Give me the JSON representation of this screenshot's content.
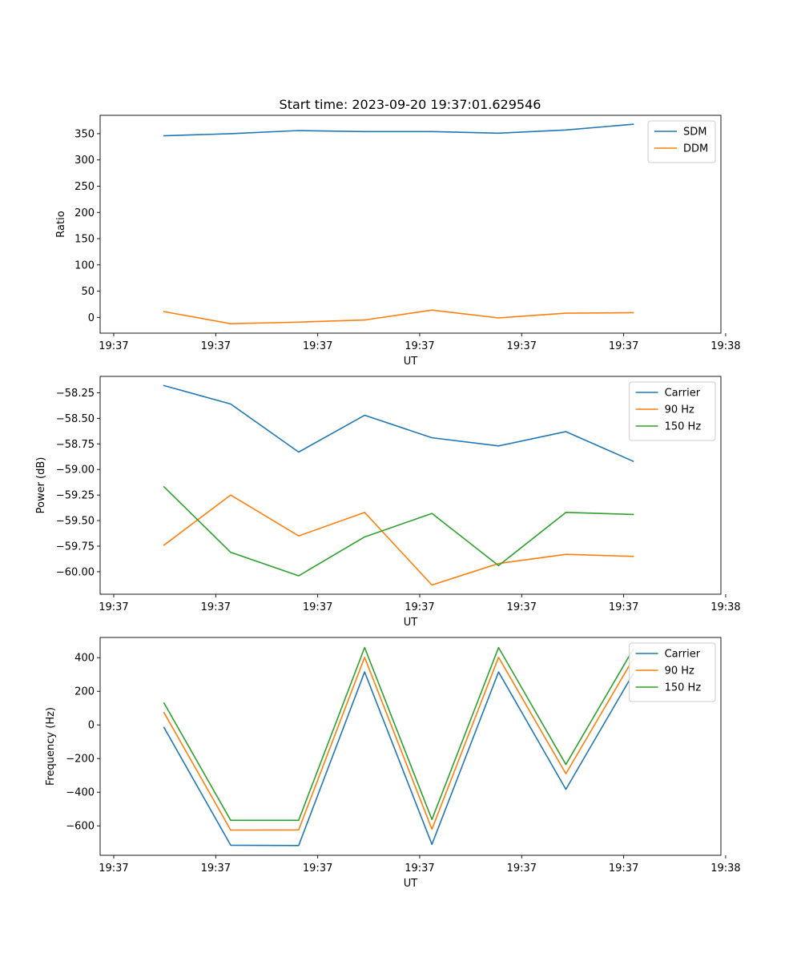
{
  "figure_title": "Start time: 2023-09-20 19:37:01.629546",
  "colors": {
    "c0": "#1f77b4",
    "c1": "#ff7f0e",
    "c2": "#2ca02c"
  },
  "chart_data": [
    {
      "type": "line",
      "id": "ratio",
      "title": "Start time: 2023-09-20 19:37:01.629546",
      "xlabel": "UT",
      "ylabel": "Ratio",
      "xlim": [
        0,
        9.13
      ],
      "ylim": [
        -30,
        385
      ],
      "xticks": [
        0.2,
        1.7,
        3.2,
        4.7,
        6.2,
        7.7,
        9.2
      ],
      "xtick_labels": [
        "19:37",
        "19:37",
        "19:37",
        "19:37",
        "19:37",
        "19:37",
        "19:38"
      ],
      "yticks": [
        0,
        50,
        100,
        150,
        200,
        250,
        300,
        350
      ],
      "ytick_labels": [
        "0",
        "50",
        "100",
        "150",
        "200",
        "250",
        "300",
        "350"
      ],
      "x": [
        0.94,
        1.92,
        2.92,
        3.89,
        4.88,
        5.86,
        6.85,
        7.84
      ],
      "series": [
        {
          "name": "SDM",
          "color": "#1f77b4",
          "values": [
            346,
            350,
            356,
            354,
            354,
            351,
            357,
            368
          ]
        },
        {
          "name": "DDM",
          "color": "#ff7f0e",
          "values": [
            11,
            -12,
            -9,
            -5,
            14,
            -1,
            8,
            9
          ]
        }
      ],
      "legend": "top-right"
    },
    {
      "type": "line",
      "id": "power",
      "title": "",
      "xlabel": "UT",
      "ylabel": "Power (dB)",
      "xlim": [
        0,
        9.13
      ],
      "ylim": [
        -60.22,
        -58.09
      ],
      "xticks": [
        0.2,
        1.7,
        3.2,
        4.7,
        6.2,
        7.7,
        9.2
      ],
      "xtick_labels": [
        "19:37",
        "19:37",
        "19:37",
        "19:37",
        "19:37",
        "19:37",
        "19:38"
      ],
      "yticks": [
        -60.0,
        -59.75,
        -59.5,
        -59.25,
        -59.0,
        -58.75,
        -58.5,
        -58.25
      ],
      "ytick_labels": [
        "−60.00",
        "−59.75",
        "−59.50",
        "−59.25",
        "−59.00",
        "−58.75",
        "−58.50",
        "−58.25"
      ],
      "x": [
        0.94,
        1.92,
        2.92,
        3.89,
        4.88,
        5.86,
        6.85,
        7.84
      ],
      "series": [
        {
          "name": "Carrier",
          "color": "#1f77b4",
          "values": [
            -58.18,
            -58.36,
            -58.83,
            -58.47,
            -58.69,
            -58.77,
            -58.63,
            -58.92
          ]
        },
        {
          "name": "90 Hz",
          "color": "#ff7f0e",
          "values": [
            -59.74,
            -59.25,
            -59.65,
            -59.42,
            -60.13,
            -59.92,
            -59.83,
            -59.85
          ]
        },
        {
          "name": "150 Hz",
          "color": "#2ca02c",
          "values": [
            -59.17,
            -59.81,
            -60.04,
            -59.66,
            -59.43,
            -59.94,
            -59.42,
            -59.44
          ]
        }
      ],
      "legend": "top-right"
    },
    {
      "type": "line",
      "id": "frequency",
      "title": "",
      "xlabel": "UT",
      "ylabel": "Frequency (Hz)",
      "xlim": [
        0,
        9.13
      ],
      "ylim": [
        -775,
        520
      ],
      "xticks": [
        0.2,
        1.7,
        3.2,
        4.7,
        6.2,
        7.7,
        9.2
      ],
      "xtick_labels": [
        "19:37",
        "19:37",
        "19:37",
        "19:37",
        "19:37",
        "19:37",
        "19:38"
      ],
      "yticks": [
        -600,
        -400,
        -200,
        0,
        200,
        400
      ],
      "ytick_labels": [
        "−600",
        "−400",
        "−200",
        "0",
        "200",
        "400"
      ],
      "x": [
        0.94,
        1.92,
        2.92,
        3.89,
        4.88,
        5.86,
        6.85,
        7.84
      ],
      "series": [
        {
          "name": "Carrier",
          "color": "#1f77b4",
          "values": [
            -15,
            -715,
            -717,
            315,
            -710,
            315,
            -383,
            305
          ]
        },
        {
          "name": "90 Hz",
          "color": "#ff7f0e",
          "values": [
            73,
            -625,
            -624,
            402,
            -620,
            402,
            -290,
            392
          ]
        },
        {
          "name": "150 Hz",
          "color": "#2ca02c",
          "values": [
            130,
            -567,
            -567,
            460,
            -562,
            460,
            -235,
            450
          ]
        }
      ],
      "legend": "top-right"
    }
  ]
}
